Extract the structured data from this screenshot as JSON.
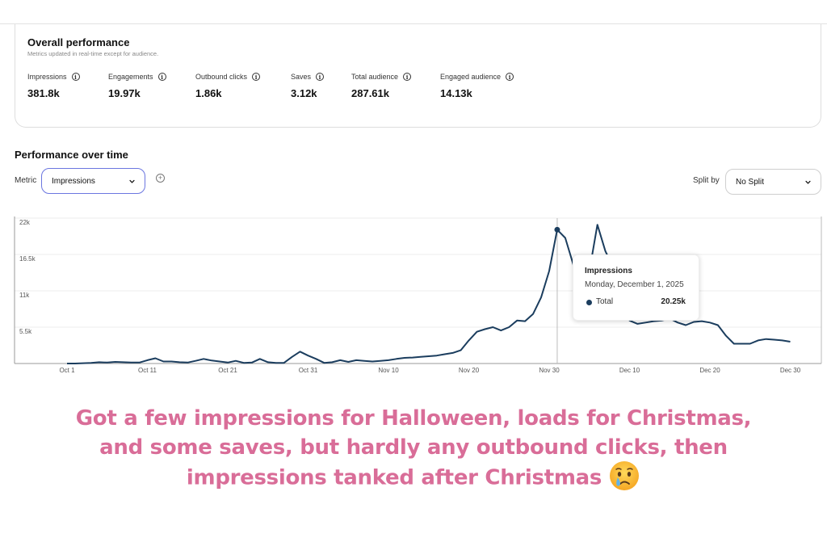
{
  "overall": {
    "title": "Overall performance",
    "subtitle": "Metrics updated in real-time except for audience.",
    "metrics": [
      {
        "label": "Impressions",
        "value": "381.8k"
      },
      {
        "label": "Engagements",
        "value": "19.97k"
      },
      {
        "label": "Outbound clicks",
        "value": "1.86k"
      },
      {
        "label": "Saves",
        "value": "3.12k"
      },
      {
        "label": "Total audience",
        "value": "287.61k"
      },
      {
        "label": "Engaged audience",
        "value": "14.13k"
      }
    ]
  },
  "performance": {
    "title": "Performance over time",
    "metric_label": "Metric",
    "metric_selected": "Impressions",
    "split_label": "Split by",
    "split_selected": "No Split"
  },
  "tooltip": {
    "title": "Impressions",
    "date": "Monday, December 1, 2025",
    "series": "Total",
    "value": "20.25k"
  },
  "colors": {
    "line": "#1b3d5e",
    "select_border_active": "#6b76e0",
    "caption": "#d96d98"
  },
  "caption": {
    "line1": "Got a few impressions for Halloween, loads for Christmas,",
    "line2": "and some saves, but hardly any outbound clicks, then",
    "line3": "impressions tanked after Christmas",
    "emoji": "crying-face"
  },
  "chart_data": {
    "type": "line",
    "title": "Performance over time",
    "metric": "Impressions",
    "xlabel": "",
    "ylabel": "",
    "ylim": [
      0,
      22000
    ],
    "yticks": [
      "5.5k",
      "11k",
      "16.5k",
      "22k"
    ],
    "xticks": [
      "Oct 1",
      "Oct 11",
      "Oct 21",
      "Oct 31",
      "Nov 10",
      "Nov 20",
      "Nov 30",
      "Dec 10",
      "Dec 20",
      "Dec 30"
    ],
    "grid": true,
    "legend": "none",
    "series": [
      {
        "name": "Total",
        "x": [
          "Oct 1",
          "Oct 2",
          "Oct 3",
          "Oct 4",
          "Oct 5",
          "Oct 6",
          "Oct 7",
          "Oct 8",
          "Oct 9",
          "Oct 10",
          "Oct 11",
          "Oct 12",
          "Oct 13",
          "Oct 14",
          "Oct 15",
          "Oct 16",
          "Oct 17",
          "Oct 18",
          "Oct 19",
          "Oct 20",
          "Oct 21",
          "Oct 22",
          "Oct 23",
          "Oct 24",
          "Oct 25",
          "Oct 26",
          "Oct 27",
          "Oct 28",
          "Oct 29",
          "Oct 30",
          "Oct 31",
          "Nov 1",
          "Nov 2",
          "Nov 3",
          "Nov 4",
          "Nov 5",
          "Nov 6",
          "Nov 7",
          "Nov 8",
          "Nov 9",
          "Nov 10",
          "Nov 11",
          "Nov 12",
          "Nov 13",
          "Nov 14",
          "Nov 15",
          "Nov 16",
          "Nov 17",
          "Nov 18",
          "Nov 19",
          "Nov 20",
          "Nov 21",
          "Nov 22",
          "Nov 23",
          "Nov 24",
          "Nov 25",
          "Nov 26",
          "Nov 27",
          "Nov 28",
          "Nov 29",
          "Nov 30",
          "Dec 1",
          "Dec 2",
          "Dec 3",
          "Dec 4",
          "Dec 5",
          "Dec 6",
          "Dec 7",
          "Dec 8",
          "Dec 9",
          "Dec 10",
          "Dec 11",
          "Dec 12",
          "Dec 13",
          "Dec 14",
          "Dec 15",
          "Dec 16",
          "Dec 17",
          "Dec 18",
          "Dec 19",
          "Dec 20",
          "Dec 21",
          "Dec 22",
          "Dec 23",
          "Dec 24",
          "Dec 25",
          "Dec 26",
          "Dec 27",
          "Dec 28",
          "Dec 29",
          "Dec 30"
        ],
        "values": [
          0,
          0,
          50,
          100,
          200,
          150,
          250,
          200,
          150,
          150,
          500,
          800,
          300,
          300,
          200,
          150,
          400,
          700,
          450,
          300,
          150,
          400,
          100,
          150,
          700,
          200,
          100,
          100,
          1000,
          1800,
          1200,
          700,
          100,
          200,
          500,
          250,
          500,
          400,
          300,
          400,
          500,
          700,
          850,
          900,
          1000,
          1100,
          1200,
          1400,
          1600,
          2000,
          3500,
          4800,
          5200,
          5500,
          5000,
          5500,
          6500,
          6400,
          7500,
          10000,
          14000,
          20250,
          19000,
          15000,
          8000,
          14000,
          21000,
          17000,
          14500,
          10000,
          6500,
          6000,
          6200,
          6400,
          6500,
          6800,
          6200,
          5800,
          6300,
          6400,
          6200,
          5800,
          4200,
          3000,
          3000,
          3000,
          3500,
          3700,
          3600,
          3500,
          3300
        ]
      }
    ],
    "highlighted_point": {
      "x": "Dec 1",
      "y": 20250
    }
  }
}
